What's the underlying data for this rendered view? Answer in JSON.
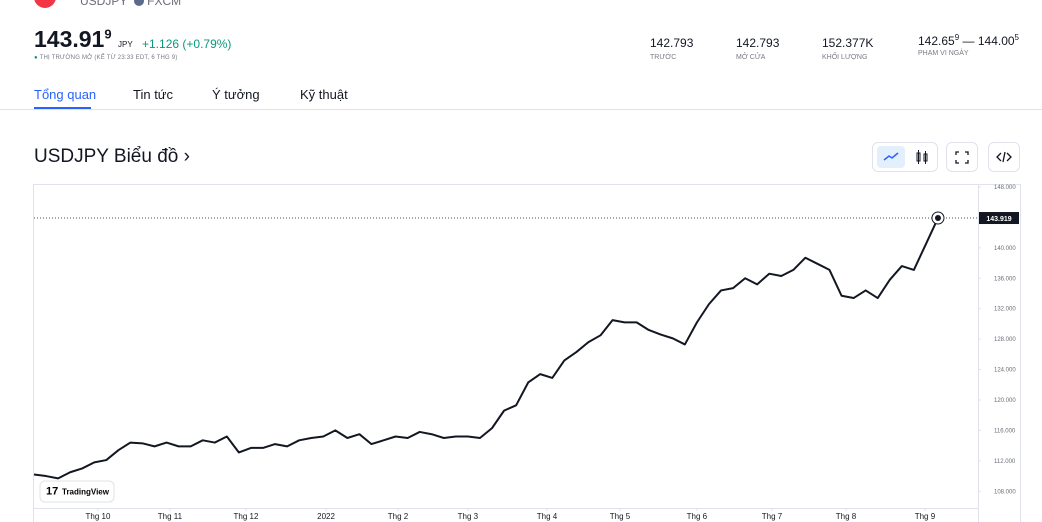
{
  "header": {
    "symbol": "USDJPY",
    "exchange": "FXCM",
    "price_main": "143.91",
    "price_sup": "9",
    "currency": "JPY",
    "change": "+1.126",
    "change_pct": "(+0.79%)",
    "market_status": "THỊ TRƯỜNG MỞ (KỂ TỪ 23:33 EDT, 6 THG 9)"
  },
  "stats": [
    {
      "value": "142.793",
      "label": "TRƯỚC"
    },
    {
      "value": "142.793",
      "label": "MỞ CỬA"
    },
    {
      "value": "152.377K",
      "label": "KHỐI LƯỢNG"
    }
  ],
  "range": {
    "low": "142.65",
    "low_sup": "9",
    "sep": "—",
    "high": "144.00",
    "high_sup": "5",
    "label": "PHẠM VI NGÀY"
  },
  "tabs": [
    "Tổng quan",
    "Tin tức",
    "Ý tưởng",
    "Kỹ thuật"
  ],
  "chart_title": "USDJPY Biểu đồ ›",
  "chart_data": {
    "type": "line",
    "series": [
      {
        "name": "USDJPY",
        "color": "#131722",
        "values": [
          110.2,
          110.0,
          109.7,
          110.5,
          111.0,
          111.8,
          112.1,
          113.4,
          114.4,
          114.3,
          113.9,
          114.4,
          113.9,
          113.9,
          114.7,
          114.4,
          115.2,
          113.1,
          113.7,
          113.7,
          114.2,
          113.9,
          114.7,
          115.0,
          115.2,
          116.0,
          115.0,
          115.5,
          114.2,
          114.7,
          115.2,
          115.0,
          115.8,
          115.5,
          115.0,
          115.2,
          115.2,
          115.0,
          116.3,
          118.6,
          119.3,
          122.3,
          123.4,
          122.9,
          125.2,
          126.3,
          127.6,
          128.5,
          130.5,
          130.2,
          130.2,
          129.2,
          128.6,
          128.1,
          127.3,
          130.2,
          132.6,
          134.4,
          134.7,
          136.0,
          135.2,
          136.6,
          136.3,
          137.1,
          138.7,
          137.9,
          137.1,
          133.7,
          133.4,
          134.4,
          133.4,
          135.8,
          137.6,
          137.1,
          140.5,
          143.919
        ]
      }
    ],
    "xlim": [
      0,
      78.32
    ],
    "xticks": [
      {
        "value": 5.31,
        "label": "Thg 10"
      },
      {
        "value": 11.28,
        "label": "Thg 11"
      },
      {
        "value": 17.59,
        "label": "Thg 12"
      },
      {
        "value": 24.23,
        "label": "2022"
      },
      {
        "value": 30.2,
        "label": "Thg 2"
      },
      {
        "value": 36.0,
        "label": "Thg 3"
      },
      {
        "value": 42.56,
        "label": "Thg 4"
      },
      {
        "value": 48.62,
        "label": "Thg 5"
      },
      {
        "value": 55.0,
        "label": "Thg 6"
      },
      {
        "value": 61.23,
        "label": "Thg 7"
      },
      {
        "value": 67.37,
        "label": "Thg 8"
      },
      {
        "value": 73.92,
        "label": "Thg 9"
      }
    ],
    "ylim": [
      105.8,
      148.26
    ],
    "yticks": [
      {
        "value": 148,
        "label": "148.000"
      },
      {
        "value": 140,
        "label": "140.000"
      },
      {
        "value": 136,
        "label": "136.000"
      },
      {
        "value": 132,
        "label": "132.000"
      },
      {
        "value": 128,
        "label": "128.000"
      },
      {
        "value": 124,
        "label": "124.000"
      },
      {
        "value": 120,
        "label": "120.000"
      },
      {
        "value": 116,
        "label": "116.000"
      },
      {
        "value": 112,
        "label": "112.000"
      },
      {
        "value": 108,
        "label": "108.000"
      }
    ],
    "price_line": 143.919,
    "watermark": "TradingView"
  }
}
